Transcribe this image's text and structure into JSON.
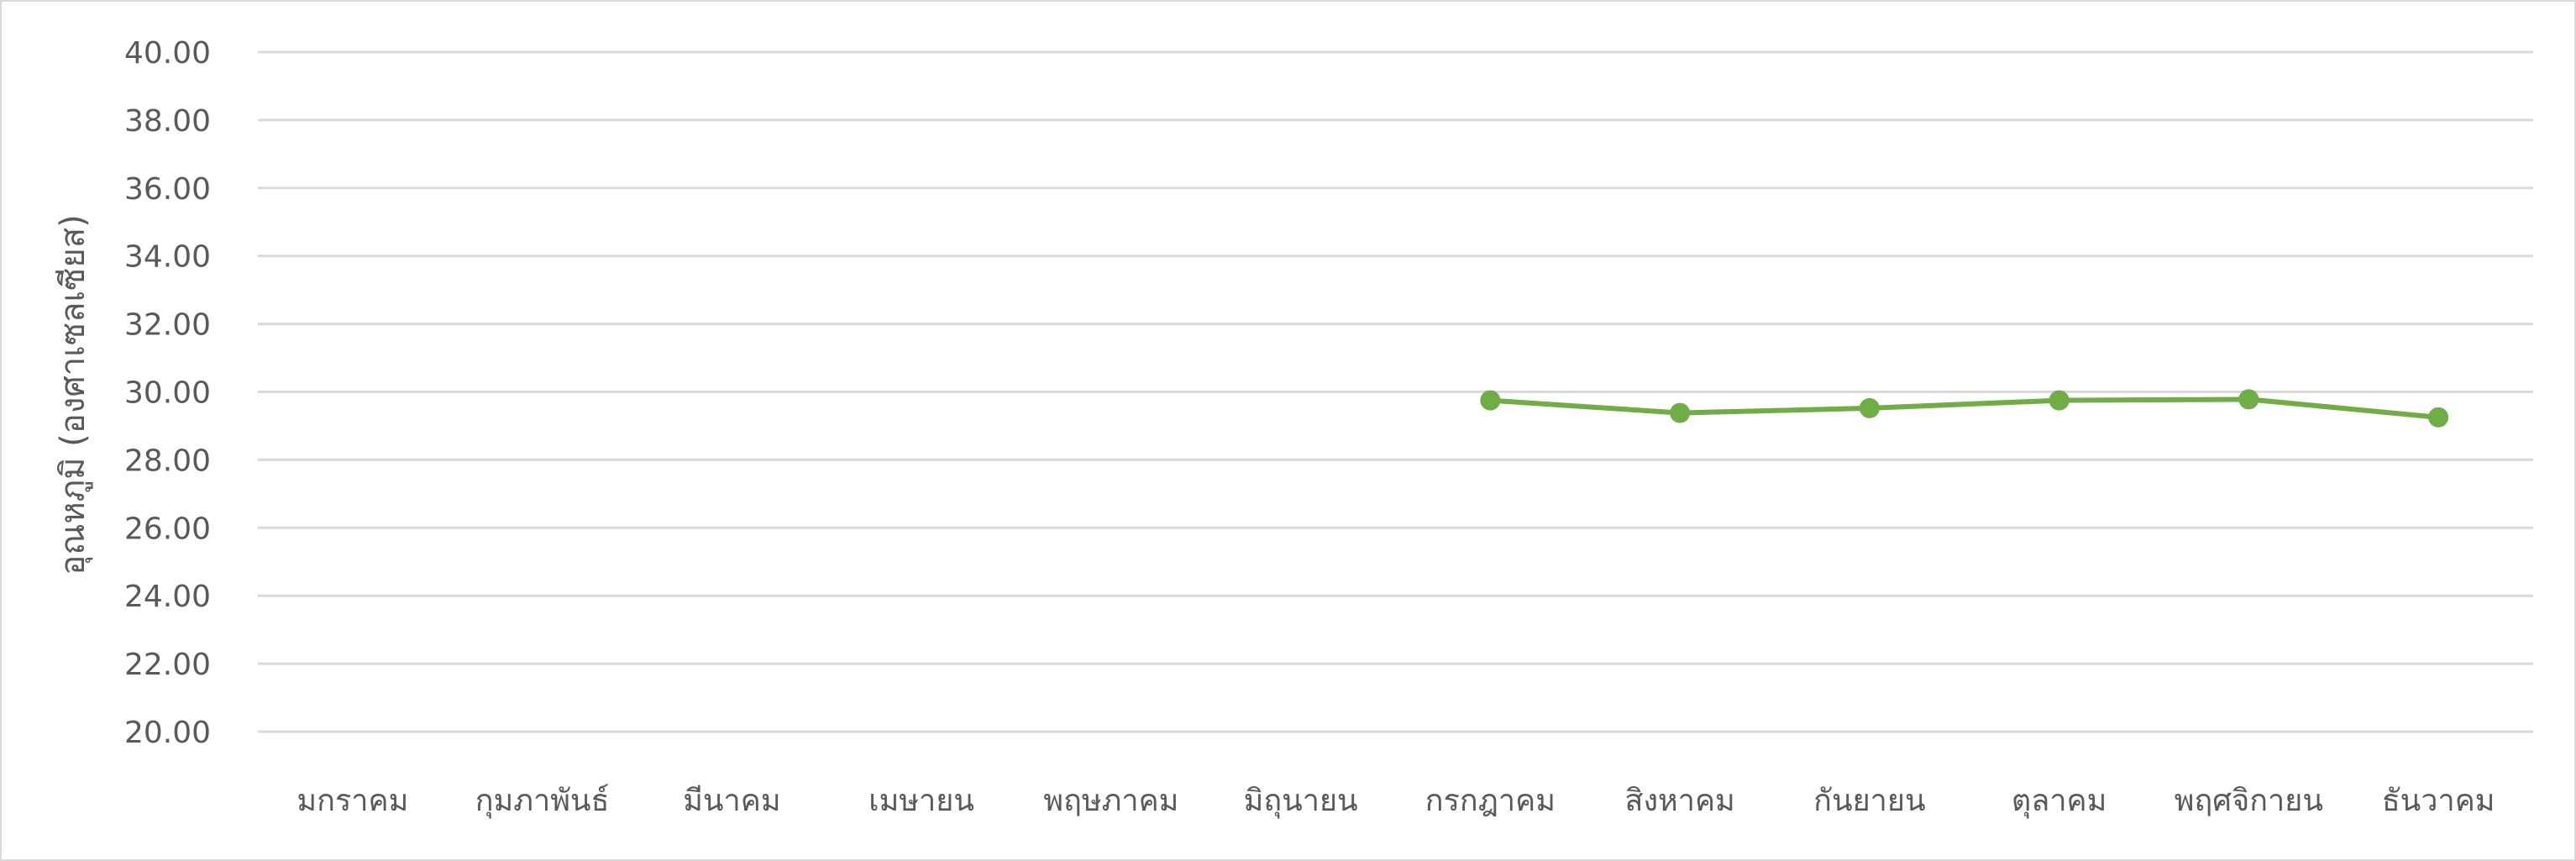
{
  "chart_data": {
    "type": "line",
    "title": "",
    "xlabel": "",
    "ylabel": "อุณหภูมิ (องศาเซลเซียส)",
    "categories": [
      "มกราคม",
      "กุมภาพันธ์",
      "มีนาคม",
      "เมษายน",
      "พฤษภาคม",
      "มิถุนายน",
      "กรกฎาคม",
      "สิงหาคม",
      "กันยายน",
      "ตุลาคม",
      "พฤศจิกายน",
      "ธันวาคม"
    ],
    "series": [
      {
        "color": "#70ad47",
        "values": [
          null,
          null,
          null,
          null,
          null,
          null,
          29.75,
          29.38,
          29.52,
          29.75,
          29.78,
          29.25
        ]
      }
    ],
    "ylim": [
      20,
      40
    ],
    "yticks": [
      "20.00",
      "22.00",
      "24.00",
      "26.00",
      "28.00",
      "30.00",
      "32.00",
      "34.00",
      "36.00",
      "38.00",
      "40.00"
    ],
    "grid": true,
    "legend": "none"
  }
}
